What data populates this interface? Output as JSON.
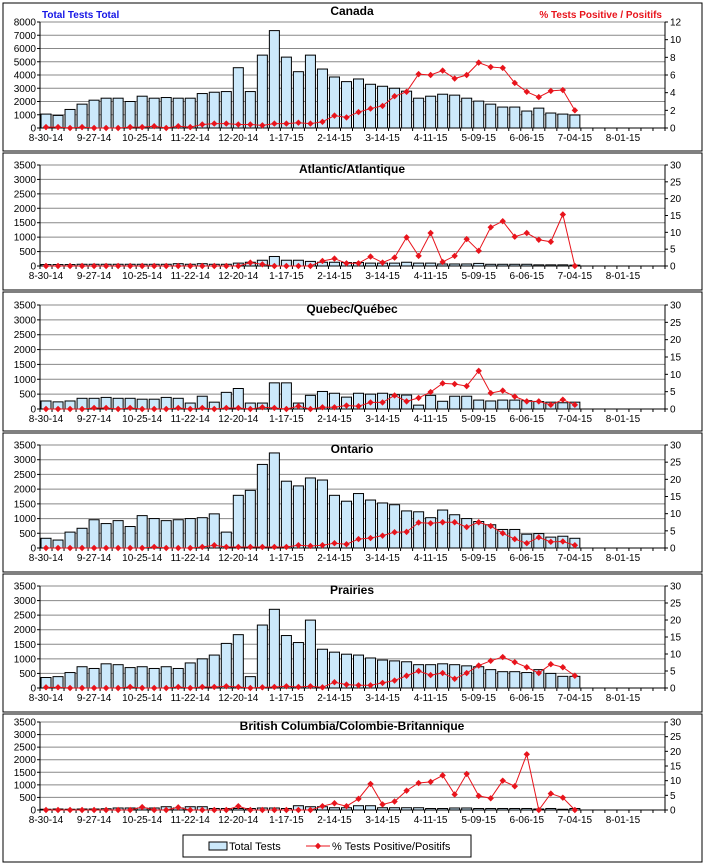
{
  "colors": {
    "bar": "#cce9fb",
    "bar_stroke": "#000000",
    "line": "#e8141c",
    "grid": "#888888",
    "left_label": "#1414e6",
    "right_label": "#e8141c"
  },
  "legend": {
    "bars": "Total Tests",
    "line": "% Tests Positive/Positifs"
  },
  "chart_data": [
    {
      "type": "bar+line",
      "title": "Canada",
      "ylabel_left": "Total Tests Total",
      "ylabel_right": "% Tests Positive / Positifs",
      "ylim_left": [
        0,
        8000
      ],
      "yticks_left": [
        0,
        1000,
        2000,
        3000,
        4000,
        5000,
        6000,
        7000,
        8000
      ],
      "ylim_right": [
        0,
        12
      ],
      "yticks_right": [
        0,
        2,
        4,
        6,
        8,
        10,
        12
      ],
      "x_tick_labels": [
        "8-30-14",
        "9-27-14",
        "10-25-14",
        "11-22-14",
        "12-20-14",
        "1-17-15",
        "2-14-15",
        "3-14-15",
        "4-11-15",
        "5-09-15",
        "6-06-15",
        "7-04-15",
        "8-01-15"
      ],
      "total_tests": [
        1050,
        950,
        1400,
        1800,
        2100,
        2250,
        2250,
        2000,
        2400,
        2250,
        2300,
        2250,
        2250,
        2600,
        2700,
        2750,
        4550,
        2750,
        5500,
        7350,
        5350,
        4250,
        5500,
        4450,
        3850,
        3500,
        3700,
        3300,
        3150,
        3000,
        2780,
        2250,
        2400,
        2550,
        2480,
        2250,
        2030,
        1800,
        1580,
        1580,
        1280,
        1500,
        1130,
        1050,
        980
      ],
      "pct_positive": [
        0.1,
        0.1,
        0,
        0.1,
        0,
        0,
        0,
        0.1,
        0.1,
        0.2,
        0,
        0.2,
        0.1,
        0.4,
        0.5,
        0.5,
        0.4,
        0.4,
        0.3,
        0.5,
        0.5,
        0.6,
        0.5,
        0.7,
        1.4,
        1.2,
        1.8,
        2.2,
        2.5,
        3.6,
        4.1,
        6.1,
        6.0,
        6.5,
        5.6,
        6.0,
        7.4,
        6.9,
        6.8,
        5.1,
        4.1,
        3.5,
        4.2,
        4.3,
        2.0
      ]
    },
    {
      "type": "bar+line",
      "title": "Atlantic/Atlantique",
      "ylim_left": [
        0,
        3500
      ],
      "yticks_left": [
        0,
        500,
        1000,
        1500,
        2000,
        2500,
        3000,
        3500
      ],
      "ylim_right": [
        0,
        30
      ],
      "yticks_right": [
        0,
        5,
        10,
        15,
        20,
        25,
        30
      ],
      "x_tick_labels": [
        "8-30-14",
        "9-27-14",
        "10-25-14",
        "11-22-14",
        "12-20-14",
        "1-17-15",
        "2-14-15",
        "3-14-15",
        "4-11-15",
        "5-09-15",
        "6-06-15",
        "7-04-15",
        "8-01-15"
      ],
      "total_tests": [
        50,
        50,
        50,
        60,
        60,
        60,
        60,
        60,
        60,
        60,
        60,
        80,
        60,
        80,
        60,
        60,
        100,
        130,
        200,
        330,
        200,
        200,
        160,
        130,
        130,
        120,
        120,
        100,
        100,
        100,
        130,
        100,
        100,
        70,
        70,
        70,
        90,
        60,
        60,
        60,
        60,
        40,
        40,
        40,
        30
      ],
      "pct_positive": [
        0,
        0,
        0,
        0,
        0,
        0,
        0,
        0,
        0,
        0,
        0,
        0,
        0,
        0,
        0,
        0,
        0,
        1.0,
        0.5,
        0,
        0,
        0,
        0,
        1.5,
        2.2,
        0.8,
        0.8,
        2.8,
        1.0,
        2.5,
        8.5,
        3.0,
        9.8,
        1.2,
        3.0,
        8.0,
        4.5,
        11.5,
        13.3,
        8.7,
        9.8,
        7.8,
        7.2,
        15.3,
        0
      ]
    },
    {
      "type": "bar+line",
      "title": "Quebec/Québec",
      "ylim_left": [
        0,
        3500
      ],
      "yticks_left": [
        0,
        500,
        1000,
        1500,
        2000,
        2500,
        3000,
        3500
      ],
      "ylim_right": [
        0,
        30
      ],
      "yticks_right": [
        0,
        5,
        10,
        15,
        20,
        25,
        30
      ],
      "x_tick_labels": [
        "8-30-14",
        "9-27-14",
        "10-25-14",
        "11-22-14",
        "12-20-14",
        "1-17-15",
        "2-14-15",
        "3-14-15",
        "4-11-15",
        "5-09-15",
        "6-06-15",
        "7-04-15",
        "8-01-15"
      ],
      "total_tests": [
        270,
        240,
        270,
        360,
        360,
        390,
        360,
        360,
        330,
        330,
        390,
        360,
        200,
        430,
        230,
        560,
        690,
        200,
        200,
        880,
        880,
        200,
        460,
        590,
        530,
        400,
        530,
        500,
        530,
        480,
        470,
        130,
        460,
        260,
        430,
        430,
        300,
        270,
        300,
        300,
        280,
        250,
        230,
        210,
        230
      ],
      "pct_positive": [
        0,
        0,
        0,
        0,
        0.3,
        0.3,
        0,
        0.3,
        0,
        0,
        0,
        0.3,
        0,
        0.3,
        0,
        0.3,
        0.3,
        0,
        0.5,
        0.3,
        0,
        0.8,
        0,
        0.5,
        0.5,
        1.0,
        0.8,
        1.9,
        1.9,
        3.9,
        2.2,
        3.2,
        4.9,
        7.4,
        7.2,
        6.6,
        11.0,
        4.6,
        5.3,
        3.6,
        2.2,
        2.2,
        1.2,
        2.7,
        1.2
      ]
    },
    {
      "type": "bar+line",
      "title": "Ontario",
      "ylim_left": [
        0,
        3500
      ],
      "yticks_left": [
        0,
        500,
        1000,
        1500,
        2000,
        2500,
        3000,
        3500
      ],
      "ylim_right": [
        0,
        30
      ],
      "yticks_right": [
        0,
        5,
        10,
        15,
        20,
        25,
        30
      ],
      "x_tick_labels": [
        "8-30-14",
        "9-27-14",
        "10-25-14",
        "11-22-14",
        "12-20-14",
        "1-17-15",
        "2-14-15",
        "3-14-15",
        "4-11-15",
        "5-09-15",
        "6-06-15",
        "7-04-15",
        "8-01-15"
      ],
      "total_tests": [
        330,
        270,
        540,
        670,
        960,
        830,
        930,
        730,
        1100,
        1000,
        930,
        960,
        1000,
        1030,
        1160,
        540,
        1790,
        1960,
        2840,
        3230,
        2270,
        2110,
        2380,
        2310,
        1790,
        1590,
        1850,
        1630,
        1530,
        1470,
        1260,
        1230,
        1030,
        1290,
        1130,
        1000,
        900,
        790,
        630,
        630,
        470,
        490,
        370,
        400,
        330
      ],
      "pct_positive": [
        0,
        0,
        0,
        0,
        0,
        0,
        0,
        0,
        0,
        0.3,
        0,
        0,
        0,
        0.3,
        0.8,
        0.3,
        0.3,
        0.3,
        0.3,
        0.3,
        0.3,
        0.8,
        0.6,
        0.8,
        1.4,
        1.1,
        2.6,
        2.9,
        3.6,
        4.6,
        4.7,
        7.4,
        7.2,
        7.5,
        7.5,
        6.1,
        7.5,
        6.4,
        4.3,
        2.6,
        1.4,
        3.1,
        1.8,
        1.9,
        0.8
      ]
    },
    {
      "type": "bar+line",
      "title": "Prairies",
      "ylim_left": [
        0,
        3500
      ],
      "yticks_left": [
        0,
        500,
        1000,
        1500,
        2000,
        2500,
        3000,
        3500
      ],
      "ylim_right": [
        0,
        30
      ],
      "yticks_right": [
        0,
        5,
        10,
        15,
        20,
        25,
        30
      ],
      "x_tick_labels": [
        "8-30-14",
        "9-27-14",
        "10-25-14",
        "11-22-14",
        "12-20-14",
        "1-17-15",
        "2-14-15",
        "3-14-15",
        "4-11-15",
        "5-09-15",
        "6-06-15",
        "7-04-15",
        "8-01-15"
      ],
      "total_tests": [
        360,
        390,
        530,
        730,
        670,
        830,
        800,
        700,
        730,
        670,
        730,
        670,
        860,
        1000,
        1130,
        1530,
        1830,
        390,
        2160,
        2700,
        1800,
        1560,
        2330,
        1330,
        1230,
        1160,
        1130,
        1030,
        960,
        930,
        900,
        800,
        800,
        830,
        800,
        760,
        730,
        630,
        560,
        560,
        530,
        630,
        500,
        400,
        400
      ],
      "pct_positive": [
        0.2,
        0.2,
        0,
        0,
        0,
        0,
        0,
        0.3,
        0,
        0,
        0,
        0.3,
        0,
        0.3,
        0.3,
        0.5,
        0.3,
        0,
        0.2,
        0.3,
        0.5,
        0.3,
        0.5,
        0.2,
        1.7,
        1.0,
        0.8,
        0.8,
        1.5,
        2.2,
        3.6,
        5.0,
        3.8,
        4.4,
        2.7,
        4.4,
        6.6,
        8.0,
        9.1,
        7.6,
        6.1,
        4.4,
        7.0,
        6.1,
        3.6
      ]
    },
    {
      "type": "bar+line",
      "title": "British Columbia/Colombie-Britannique",
      "ylim_left": [
        0,
        3500
      ],
      "yticks_left": [
        0,
        500,
        1000,
        1500,
        2000,
        2500,
        3000,
        3500
      ],
      "ylim_right": [
        0,
        30
      ],
      "yticks_right": [
        0,
        5,
        10,
        15,
        20,
        25,
        30
      ],
      "x_tick_labels": [
        "8-30-14",
        "9-27-14",
        "10-25-14",
        "11-22-14",
        "12-20-14",
        "1-17-15",
        "2-14-15",
        "3-14-15",
        "4-11-15",
        "5-09-15",
        "6-06-15",
        "7-04-15",
        "8-01-15"
      ],
      "total_tests": [
        30,
        40,
        30,
        40,
        40,
        50,
        80,
        80,
        80,
        80,
        130,
        80,
        130,
        130,
        60,
        60,
        60,
        60,
        80,
        80,
        60,
        170,
        130,
        130,
        90,
        90,
        170,
        170,
        90,
        90,
        90,
        90,
        60,
        60,
        80,
        80,
        60,
        60,
        60,
        60,
        60,
        40,
        60,
        30,
        60
      ],
      "pct_positive": [
        0,
        0,
        0,
        0,
        0,
        0,
        0,
        0,
        1.0,
        0,
        0,
        0.9,
        0,
        0,
        0,
        0,
        1.3,
        0,
        0,
        0,
        0,
        0,
        0,
        1.3,
        2.3,
        1.3,
        3.8,
        8.9,
        1.9,
        2.9,
        6.6,
        9.2,
        9.6,
        11.8,
        5.3,
        12.3,
        4.8,
        4.0,
        10.0,
        8.1,
        19.0,
        0,
        5.6,
        4.2,
        0
      ]
    }
  ]
}
